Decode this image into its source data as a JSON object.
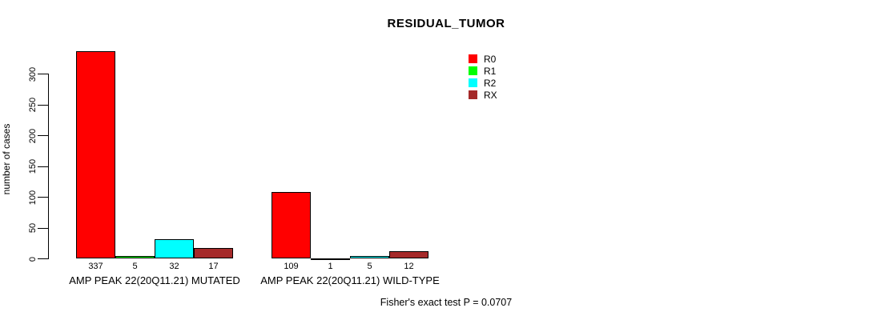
{
  "chart_data": {
    "type": "bar",
    "title": "RESIDUAL_TUMOR",
    "ylabel": "number of cases",
    "xlabel": "",
    "ylim": [
      0,
      300
    ],
    "yticks": [
      0,
      50,
      100,
      150,
      200,
      250,
      300
    ],
    "categories": [
      "AMP PEAK 22(20Q11.21) MUTATED",
      "AMP PEAK 22(20Q11.21) WILD-TYPE"
    ],
    "series": [
      {
        "name": "R0",
        "color": "#FF0000",
        "values": [
          337,
          109
        ]
      },
      {
        "name": "R1",
        "color": "#00FF00",
        "values": [
          5,
          1
        ]
      },
      {
        "name": "R2",
        "color": "#00FFFF",
        "values": [
          32,
          5
        ]
      },
      {
        "name": "RX",
        "color": "#A52A2A",
        "values": [
          17,
          12
        ]
      }
    ],
    "bar_labels": [
      [
        "337",
        "5",
        "32",
        "17"
      ],
      [
        "109",
        "1",
        "5",
        "12"
      ]
    ],
    "legend_position": "top-right",
    "grid": false,
    "annotation": "Fisher's exact test P = 0.0707"
  }
}
